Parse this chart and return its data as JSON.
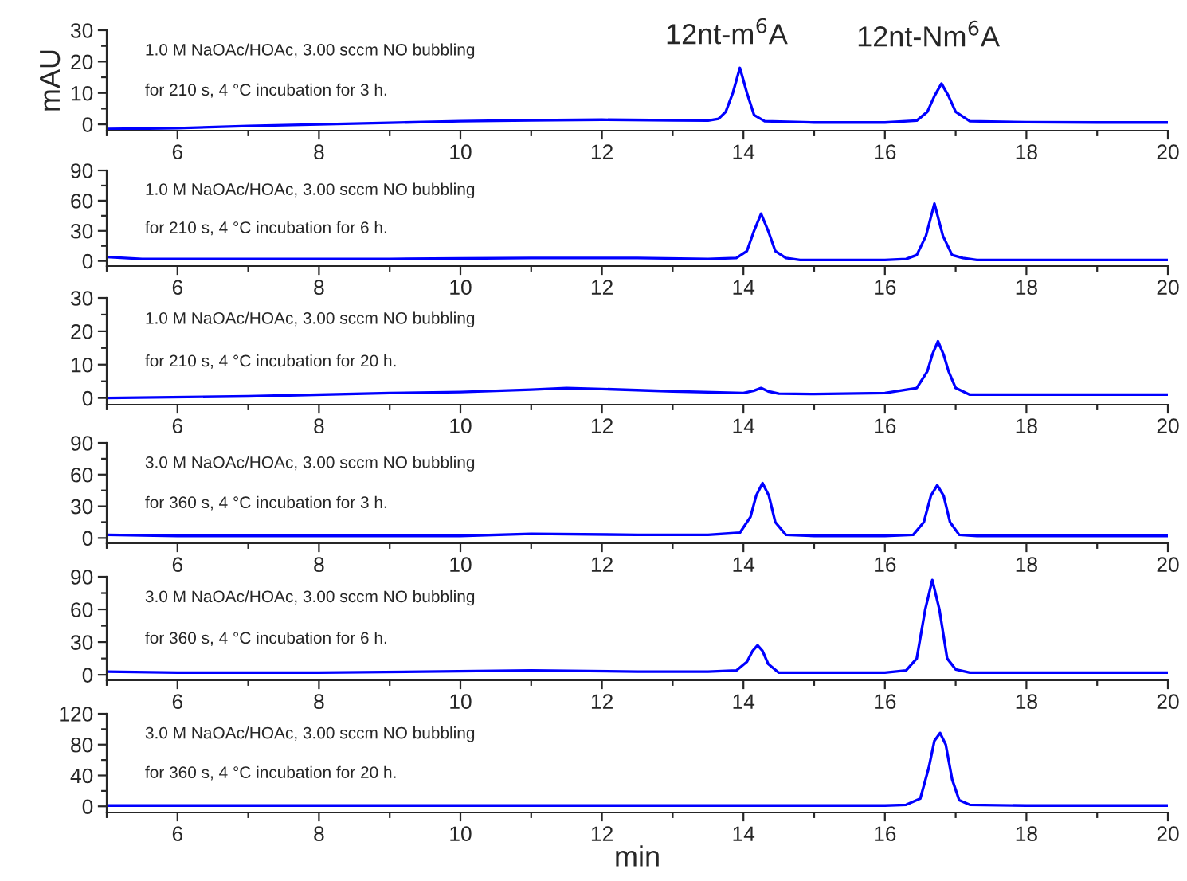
{
  "chart_data": [
    {
      "type": "line",
      "ylabel": "mAU",
      "xlim": [
        5,
        20
      ],
      "ylim": [
        -2,
        30
      ],
      "xticks": [
        6,
        8,
        10,
        12,
        14,
        16,
        18,
        20,
        {
          "value": 5,
          "label": null
        },
        {
          "value": 7,
          "label": null
        },
        {
          "value": 9,
          "label": null
        },
        {
          "value": 11,
          "label": null
        },
        {
          "value": 13,
          "label": null
        },
        {
          "value": 15,
          "label": null
        },
        {
          "value": 17,
          "label": null
        },
        {
          "value": 19,
          "label": null
        }
      ],
      "yticks": [
        0,
        10,
        20,
        30,
        {
          "value": 5,
          "label": null
        },
        {
          "value": 15,
          "label": null
        },
        {
          "value": 25,
          "label": null
        }
      ],
      "grid": false,
      "marker": "none",
      "line_style": "solid",
      "series": [
        {
          "color": "#0000ff",
          "x": [
            5,
            6,
            7,
            8,
            9,
            10,
            11,
            12,
            13,
            13.5,
            13.65,
            13.75,
            13.85,
            13.95,
            14.05,
            14.15,
            14.3,
            15,
            16,
            16.45,
            16.6,
            16.7,
            16.8,
            16.9,
            17.0,
            17.2,
            18,
            19,
            20
          ],
          "values": [
            -1.5,
            -1.2,
            -0.5,
            0,
            0.5,
            1,
            1.3,
            1.5,
            1.3,
            1.2,
            1.8,
            4,
            10,
            18,
            10,
            3,
            1,
            0.6,
            0.6,
            1.2,
            4,
            9,
            13,
            9,
            4,
            1,
            0.7,
            0.6,
            0.6
          ]
        }
      ],
      "annotations": [
        {
          "text": "12nt-m$^{6}$A",
          "x": 13.95,
          "y": 18
        },
        {
          "text": "12nt-Nm$^{6}$A",
          "x": 16.8,
          "y": 13
        },
        "1.0 M NaOAc/HOAc, 3.00 sccm NO bubbling",
        "for 210 s, 4 °C incubation for 3 h."
      ]
    },
    {
      "type": "line",
      "xlim": [
        5,
        20
      ],
      "ylim": [
        -5,
        90
      ],
      "xticks": [
        6,
        8,
        10,
        12,
        14,
        16,
        18,
        20,
        {
          "value": 5,
          "label": null
        },
        {
          "value": 7,
          "label": null
        },
        {
          "value": 9,
          "label": null
        },
        {
          "value": 11,
          "label": null
        },
        {
          "value": 13,
          "label": null
        },
        {
          "value": 15,
          "label": null
        },
        {
          "value": 17,
          "label": null
        },
        {
          "value": 19,
          "label": null
        }
      ],
      "yticks": [
        0,
        30,
        60,
        90,
        {
          "value": 15,
          "label": null
        },
        {
          "value": 45,
          "label": null
        },
        {
          "value": 75,
          "label": null
        }
      ],
      "grid": false,
      "marker": "none",
      "line_style": "solid",
      "series": [
        {
          "color": "#0000ff",
          "x": [
            5,
            5.5,
            7,
            9,
            10,
            11,
            12.5,
            13.5,
            13.9,
            14.05,
            14.15,
            14.25,
            14.35,
            14.45,
            14.6,
            14.8,
            16,
            16.3,
            16.45,
            16.58,
            16.7,
            16.82,
            16.95,
            17.1,
            17.3,
            18,
            20
          ],
          "values": [
            4,
            2,
            2,
            2,
            2.5,
            3,
            3,
            2,
            3,
            10,
            30,
            47,
            30,
            10,
            3,
            1,
            1,
            2,
            6,
            25,
            57,
            25,
            6,
            3,
            1,
            1,
            1
          ]
        }
      ],
      "annotations": [
        "1.0 M NaOAc/HOAc, 3.00 sccm NO bubbling",
        "for 210 s, 4 °C incubation for 6 h."
      ]
    },
    {
      "type": "line",
      "xlim": [
        5,
        20
      ],
      "ylim": [
        -2,
        30
      ],
      "xticks": [
        6,
        8,
        10,
        12,
        14,
        16,
        18,
        20,
        {
          "value": 5,
          "label": null
        },
        {
          "value": 7,
          "label": null
        },
        {
          "value": 9,
          "label": null
        },
        {
          "value": 11,
          "label": null
        },
        {
          "value": 13,
          "label": null
        },
        {
          "value": 15,
          "label": null
        },
        {
          "value": 17,
          "label": null
        },
        {
          "value": 19,
          "label": null
        }
      ],
      "yticks": [
        0,
        10,
        20,
        30,
        {
          "value": 5,
          "label": null
        },
        {
          "value": 15,
          "label": null
        },
        {
          "value": 25,
          "label": null
        }
      ],
      "grid": false,
      "marker": "none",
      "line_style": "solid",
      "series": [
        {
          "color": "#0000ff",
          "x": [
            5,
            7,
            9,
            10,
            11,
            11.5,
            12,
            13,
            14,
            14.15,
            14.25,
            14.35,
            14.5,
            15,
            16,
            16.45,
            16.6,
            16.67,
            16.75,
            16.83,
            16.9,
            17.0,
            17.2,
            18,
            20
          ],
          "values": [
            0,
            0.5,
            1.5,
            1.8,
            2.5,
            3,
            2.7,
            2,
            1.5,
            2.2,
            3,
            2,
            1.3,
            1.2,
            1.5,
            3,
            8,
            13,
            17,
            13,
            8,
            3,
            1,
            1,
            1
          ]
        }
      ],
      "annotations": [
        "1.0 M NaOAc/HOAc, 3.00 sccm NO bubbling",
        "for 210 s, 4 °C incubation for 20 h."
      ]
    },
    {
      "type": "line",
      "xlim": [
        5,
        20
      ],
      "ylim": [
        -5,
        90
      ],
      "xticks": [
        6,
        8,
        10,
        12,
        14,
        16,
        18,
        20,
        {
          "value": 5,
          "label": null
        },
        {
          "value": 7,
          "label": null
        },
        {
          "value": 9,
          "label": null
        },
        {
          "value": 11,
          "label": null
        },
        {
          "value": 13,
          "label": null
        },
        {
          "value": 15,
          "label": null
        },
        {
          "value": 17,
          "label": null
        },
        {
          "value": 19,
          "label": null
        }
      ],
      "yticks": [
        0,
        30,
        60,
        90,
        {
          "value": 15,
          "label": null
        },
        {
          "value": 45,
          "label": null
        },
        {
          "value": 75,
          "label": null
        }
      ],
      "grid": false,
      "marker": "none",
      "line_style": "solid",
      "series": [
        {
          "color": "#0000ff",
          "x": [
            5,
            6,
            8,
            10,
            11,
            12.5,
            13.5,
            13.95,
            14.1,
            14.18,
            14.27,
            14.36,
            14.45,
            14.6,
            15,
            16,
            16.4,
            16.55,
            16.65,
            16.74,
            16.83,
            16.92,
            17.05,
            17.3,
            18,
            20
          ],
          "values": [
            3,
            2,
            2,
            2,
            4,
            3,
            3,
            5,
            20,
            40,
            52,
            40,
            15,
            3,
            2,
            2,
            3,
            15,
            40,
            50,
            40,
            15,
            3,
            2,
            2,
            2
          ]
        }
      ],
      "annotations": [
        "3.0 M NaOAc/HOAc, 3.00 sccm NO bubbling",
        "for 360 s, 4 °C incubation for 3 h."
      ]
    },
    {
      "type": "line",
      "xlim": [
        5,
        20
      ],
      "ylim": [
        -5,
        90
      ],
      "xticks": [
        6,
        8,
        10,
        12,
        14,
        16,
        18,
        20,
        {
          "value": 5,
          "label": null
        },
        {
          "value": 7,
          "label": null
        },
        {
          "value": 9,
          "label": null
        },
        {
          "value": 11,
          "label": null
        },
        {
          "value": 13,
          "label": null
        },
        {
          "value": 15,
          "label": null
        },
        {
          "value": 17,
          "label": null
        },
        {
          "value": 19,
          "label": null
        }
      ],
      "yticks": [
        0,
        30,
        60,
        90,
        {
          "value": 15,
          "label": null
        },
        {
          "value": 45,
          "label": null
        },
        {
          "value": 75,
          "label": null
        }
      ],
      "grid": false,
      "marker": "none",
      "line_style": "solid",
      "series": [
        {
          "color": "#0000ff",
          "x": [
            5,
            6,
            8,
            11,
            12.5,
            13.5,
            13.9,
            14.05,
            14.13,
            14.2,
            14.27,
            14.35,
            14.5,
            15,
            16,
            16.3,
            16.45,
            16.57,
            16.67,
            16.77,
            16.88,
            17.0,
            17.2,
            18,
            20
          ],
          "values": [
            3,
            2,
            2,
            4,
            3,
            3,
            4,
            12,
            22,
            27,
            22,
            10,
            2,
            2,
            2,
            4,
            15,
            60,
            87,
            60,
            15,
            5,
            2,
            2,
            2
          ]
        }
      ],
      "annotations": [
        "3.0 M NaOAc/HOAc, 3.00 sccm NO bubbling",
        "for 360 s, 4 °C incubation for 6 h."
      ]
    },
    {
      "type": "line",
      "xlabel": "min",
      "xlim": [
        5,
        20
      ],
      "ylim": [
        -8,
        120
      ],
      "xticks": [
        6,
        8,
        10,
        12,
        14,
        16,
        18,
        20,
        {
          "value": 5,
          "label": null
        },
        {
          "value": 7,
          "label": null
        },
        {
          "value": 9,
          "label": null
        },
        {
          "value": 11,
          "label": null
        },
        {
          "value": 13,
          "label": null
        },
        {
          "value": 15,
          "label": null
        },
        {
          "value": 17,
          "label": null
        },
        {
          "value": 19,
          "label": null
        }
      ],
      "yticks": [
        0,
        40,
        80,
        120,
        {
          "value": 20,
          "label": null
        },
        {
          "value": 60,
          "label": null
        },
        {
          "value": 100,
          "label": null
        }
      ],
      "grid": false,
      "marker": "none",
      "line_style": "solid",
      "series": [
        {
          "color": "#0000ff",
          "x": [
            5,
            8,
            12,
            16,
            16.3,
            16.5,
            16.62,
            16.7,
            16.78,
            16.86,
            16.95,
            17.05,
            17.2,
            18,
            20
          ],
          "values": [
            1,
            1,
            1,
            1,
            2,
            10,
            50,
            85,
            95,
            80,
            35,
            8,
            2,
            1,
            1
          ]
        }
      ],
      "annotations": [
        "3.0 M NaOAc/HOAc, 3.00 sccm NO bubbling",
        "for 360 s, 4 °C incubation for 20 h."
      ]
    }
  ]
}
